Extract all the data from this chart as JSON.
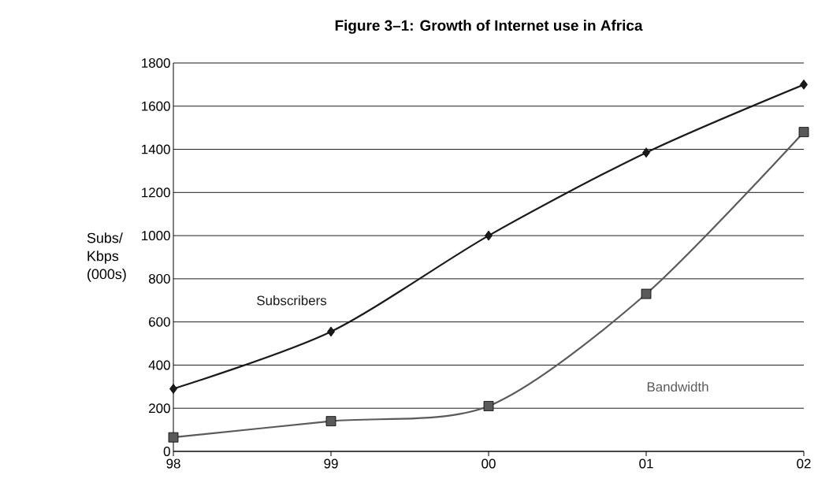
{
  "chart_data": {
    "type": "line",
    "title": "Figure 3–1: Growth of Internet use in Africa",
    "ylabel": "Subs/ Kbps (000s)",
    "categories": [
      "98",
      "99",
      "00",
      "01",
      "02"
    ],
    "series": [
      {
        "name": "Subscribers",
        "color": "#1a1a1a",
        "marker": "diamond",
        "values": [
          290,
          555,
          1000,
          1385,
          1700
        ]
      },
      {
        "name": "Bandwidth",
        "color": "#5a5a5a",
        "marker": "square",
        "values": [
          65,
          140,
          210,
          730,
          1480
        ]
      }
    ],
    "ylim": [
      0,
      1800
    ],
    "yticks": [
      0,
      200,
      400,
      600,
      800,
      1000,
      1200,
      1400,
      1600,
      1800
    ],
    "grid": "y",
    "line_style": "solid"
  }
}
